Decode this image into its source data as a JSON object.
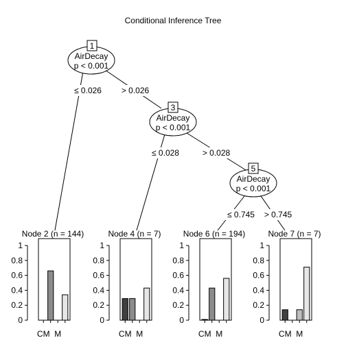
{
  "title": "Conditional Inference Tree",
  "inner_nodes": [
    {
      "id": "1",
      "variable": "AirDecay",
      "pvalue": "p < 0.001"
    },
    {
      "id": "3",
      "variable": "AirDecay",
      "pvalue": "p < 0.001"
    },
    {
      "id": "5",
      "variable": "AirDecay",
      "pvalue": "p < 0.001"
    }
  ],
  "edges": [
    {
      "from": "1",
      "to": "2",
      "label": "≤ 0.026"
    },
    {
      "from": "1",
      "to": "3",
      "label": "> 0.026"
    },
    {
      "from": "3",
      "to": "4",
      "label": "≤ 0.028"
    },
    {
      "from": "3",
      "to": "5",
      "label": "> 0.028"
    },
    {
      "from": "5",
      "to": "6",
      "label": "≤ 0.745"
    },
    {
      "from": "5",
      "to": "7",
      "label": "> 0.745"
    }
  ],
  "chart_data": {
    "type": "bar",
    "categories": [
      "CM",
      "",
      "M",
      ""
    ],
    "x_tick_labels": [
      "CM",
      "M"
    ],
    "ylim": [
      0,
      1
    ],
    "y_ticks": [
      "0",
      "0.2",
      "0.4",
      "0.6",
      "0.8",
      "1"
    ],
    "bar_colors": [
      "#404040",
      "#8c8c8c",
      "#bfbfbf",
      "#e6e6e6"
    ],
    "panels": [
      {
        "label": "Node 2 (n = 144)",
        "values": [
          0.0,
          0.66,
          0.0,
          0.34
        ]
      },
      {
        "label": "Node 4 (n = 7)",
        "values": [
          0.29,
          0.29,
          0.0,
          0.43
        ]
      },
      {
        "label": "Node 6 (n = 194)",
        "values": [
          0.01,
          0.43,
          0.0,
          0.56
        ]
      },
      {
        "label": "Node 7 (n = 7)",
        "values": [
          0.14,
          0.0,
          0.14,
          0.71
        ]
      }
    ]
  }
}
